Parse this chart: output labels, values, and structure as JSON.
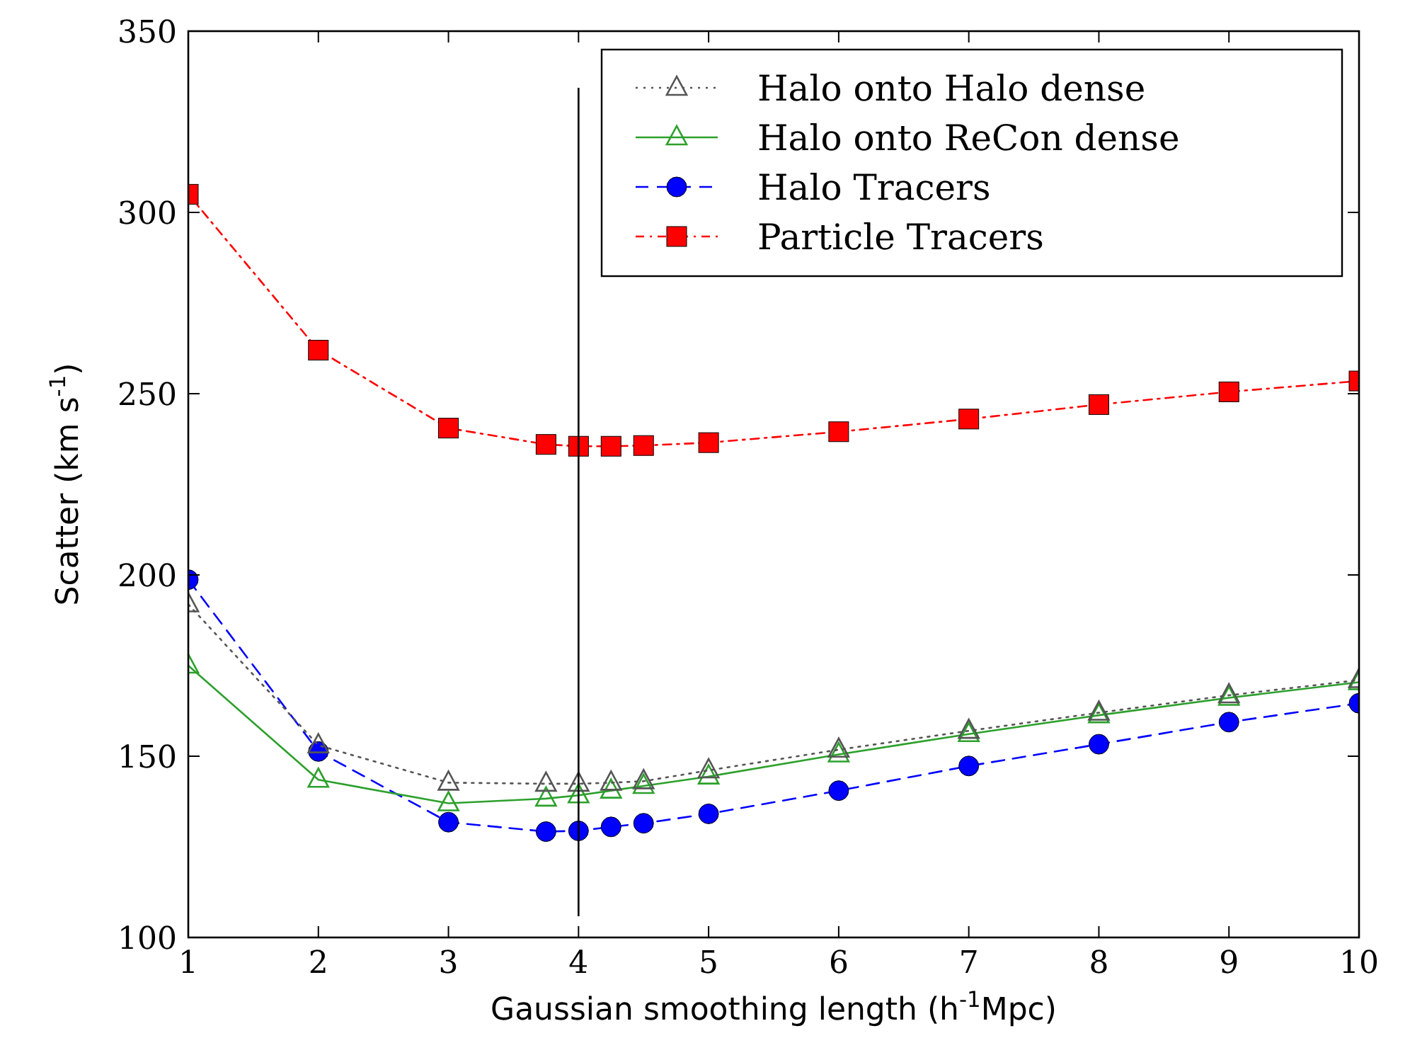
{
  "chart_data": {
    "type": "line",
    "xlabel": "Gaussian smoothing length (h$^{-1}$Mpc)",
    "ylabel": "Scatter (km s$^{-1}$)",
    "x": [
      1,
      2,
      3,
      3.75,
      4,
      4.25,
      4.5,
      5,
      6,
      7,
      8,
      9,
      10
    ],
    "xlim": [
      1,
      10
    ],
    "xticks": [
      1,
      2,
      3,
      4,
      5,
      6,
      7,
      8,
      9,
      10
    ],
    "ylim": [
      100,
      350
    ],
    "yticks": [
      100,
      150,
      200,
      250,
      300,
      350
    ],
    "grid": false,
    "legend": "top right",
    "series": [
      {
        "name": "Halo onto Halo dense",
        "color": "#555555",
        "marker": "triangle",
        "line_style": "dotted",
        "values": [
          191.9,
          153,
          142.7,
          142.4,
          142.4,
          142.7,
          143.1,
          146.1,
          151.8,
          157,
          162,
          166.8,
          171
        ]
      },
      {
        "name": "Halo onto ReCon dense",
        "color": "#2ca02c",
        "marker": "triangle",
        "line_style": "solid",
        "values": [
          175,
          143.5,
          137,
          138.3,
          139.2,
          140.5,
          141.8,
          144.4,
          150.5,
          156.1,
          161.3,
          166.1,
          170.4
        ]
      },
      {
        "name": "Halo Tracers",
        "color": "#0000ff",
        "marker": "circle",
        "line_style": "dashed",
        "values": [
          198.7,
          151.3,
          131.8,
          129.2,
          129.4,
          130.5,
          131.5,
          134.1,
          140.5,
          147.3,
          153.3,
          159.4,
          164.6
        ]
      },
      {
        "name": "Particle Tracers",
        "color": "#ff0000",
        "marker": "square",
        "line_style": "dashdot",
        "values": [
          305,
          262,
          240.5,
          236,
          235.5,
          235.5,
          235.7,
          236.5,
          239.5,
          243,
          247,
          250.5,
          253.5
        ]
      }
    ],
    "ref_lines": [
      {
        "axis": "x",
        "value": 4,
        "color": "#000000"
      }
    ]
  }
}
